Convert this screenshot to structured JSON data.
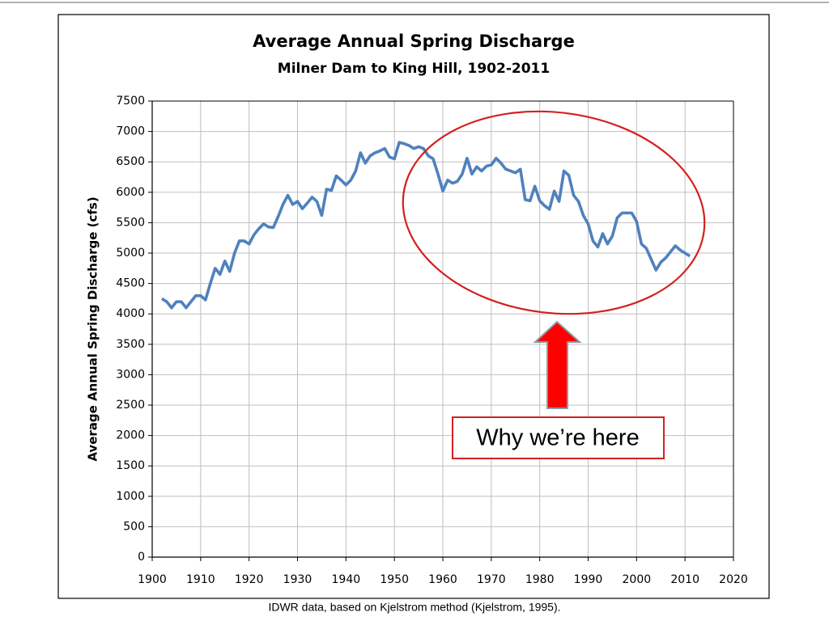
{
  "chart_data": {
    "type": "line",
    "title": "Average Annual Spring Discharge",
    "subtitle": "Milner Dam to King Hill, 1902-2011",
    "ylabel": "Average Annual Spring Discharge (cfs)",
    "footnote": "IDWR data, based on Kjelstrom method (Kjelstrom, 1995).",
    "annotation": "Why we’re here",
    "color": "#4f81bd",
    "grid": true,
    "x": [
      1902,
      1903,
      1904,
      1905,
      1906,
      1907,
      1908,
      1909,
      1910,
      1911,
      1912,
      1913,
      1914,
      1915,
      1916,
      1917,
      1918,
      1919,
      1920,
      1921,
      1922,
      1923,
      1924,
      1925,
      1926,
      1927,
      1928,
      1929,
      1930,
      1931,
      1932,
      1933,
      1934,
      1935,
      1936,
      1937,
      1938,
      1939,
      1940,
      1941,
      1942,
      1943,
      1944,
      1945,
      1946,
      1947,
      1948,
      1949,
      1950,
      1951,
      1952,
      1953,
      1954,
      1955,
      1956,
      1957,
      1958,
      1959,
      1960,
      1961,
      1962,
      1963,
      1964,
      1965,
      1966,
      1967,
      1968,
      1969,
      1970,
      1971,
      1972,
      1973,
      1974,
      1975,
      1976,
      1977,
      1978,
      1979,
      1980,
      1981,
      1982,
      1983,
      1984,
      1985,
      1986,
      1987,
      1988,
      1989,
      1990,
      1991,
      1992,
      1993,
      1994,
      1995,
      1996,
      1997,
      1998,
      1999,
      2000,
      2001,
      2002,
      2003,
      2004,
      2005,
      2006,
      2007,
      2008,
      2009,
      2010,
      2011
    ],
    "values": [
      4250,
      4200,
      4100,
      4200,
      4200,
      4100,
      4200,
      4300,
      4300,
      4230,
      4500,
      4750,
      4650,
      4870,
      4700,
      5000,
      5200,
      5200,
      5150,
      5300,
      5400,
      5480,
      5430,
      5420,
      5600,
      5800,
      5950,
      5800,
      5850,
      5730,
      5820,
      5920,
      5850,
      5620,
      6050,
      6030,
      6270,
      6200,
      6120,
      6200,
      6350,
      6650,
      6480,
      6600,
      6650,
      6680,
      6720,
      6580,
      6550,
      6820,
      6800,
      6770,
      6720,
      6750,
      6720,
      6600,
      6550,
      6300,
      6020,
      6200,
      6150,
      6180,
      6300,
      6560,
      6300,
      6420,
      6350,
      6430,
      6450,
      6560,
      6480,
      6380,
      6350,
      6320,
      6380,
      5880,
      5860,
      6100,
      5860,
      5780,
      5720,
      6020,
      5850,
      6350,
      6280,
      5950,
      5850,
      5620,
      5480,
      5200,
      5100,
      5320,
      5150,
      5280,
      5580,
      5660,
      5660,
      5660,
      5520,
      5150,
      5080,
      4900,
      4720,
      4850,
      4920,
      5020,
      5120,
      5050,
      5000,
      4950
    ],
    "xlim": [
      1900,
      2020
    ],
    "xticks": [
      1900,
      1910,
      1920,
      1930,
      1940,
      1950,
      1960,
      1970,
      1980,
      1990,
      2000,
      2010,
      2020
    ],
    "ylim": [
      0,
      7500
    ],
    "yticks": [
      0,
      500,
      1000,
      1500,
      2000,
      2500,
      3000,
      3500,
      4000,
      4500,
      5000,
      5500,
      6000,
      6500,
      7000,
      7500
    ]
  }
}
